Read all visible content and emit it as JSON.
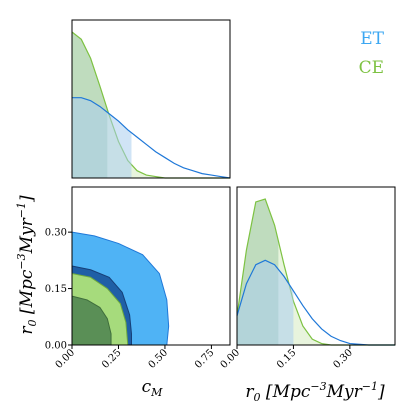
{
  "chart_data": {
    "type": "corner",
    "series": [
      {
        "name": "ET",
        "color": "#1f78d8",
        "fill": "#3ba7f2"
      },
      {
        "name": "CE",
        "color": "#7dc242",
        "fill": "#a6db7c"
      }
    ],
    "parameters": [
      {
        "key": "cM",
        "label": "c_M",
        "ticks": [
          "0.00",
          "0.25",
          "0.50",
          "0.75"
        ],
        "tick_values": [
          0,
          0.25,
          0.5,
          0.75
        ],
        "range": [
          0,
          0.85
        ]
      },
      {
        "key": "r0",
        "label": "r_0 [Mpc^-3 Myr^-1]",
        "ticks": [
          "0.00",
          "0.15",
          "0.30"
        ],
        "tick_values": [
          0,
          0.15,
          0.3
        ],
        "range": [
          0,
          0.42
        ]
      }
    ],
    "marginals": {
      "cM": {
        "x": [
          0,
          0.05,
          0.1,
          0.15,
          0.2,
          0.25,
          0.3,
          0.35,
          0.4,
          0.45,
          0.5,
          0.55,
          0.6,
          0.65,
          0.7,
          0.75,
          0.8,
          0.85
        ],
        "ET": [
          0.55,
          0.55,
          0.53,
          0.49,
          0.44,
          0.39,
          0.33,
          0.28,
          0.23,
          0.18,
          0.14,
          0.1,
          0.07,
          0.05,
          0.03,
          0.02,
          0.01,
          0.0
        ],
        "CE": [
          1.0,
          0.95,
          0.82,
          0.63,
          0.43,
          0.25,
          0.12,
          0.05,
          0.02,
          0.01,
          0.0,
          0.0,
          0.0,
          0.0,
          0.0,
          0.0,
          0.0,
          0.0
        ],
        "ET_interval": [
          0,
          0.32
        ],
        "CE_interval": [
          0,
          0.19
        ]
      },
      "r0": {
        "x": [
          0,
          0.025,
          0.05,
          0.075,
          0.1,
          0.125,
          0.15,
          0.175,
          0.2,
          0.225,
          0.25,
          0.275,
          0.3,
          0.35,
          0.42
        ],
        "ET": [
          0.2,
          0.42,
          0.55,
          0.58,
          0.55,
          0.47,
          0.37,
          0.27,
          0.18,
          0.11,
          0.06,
          0.03,
          0.01,
          0.0,
          0.0
        ],
        "CE": [
          0.2,
          0.65,
          0.98,
          1.0,
          0.82,
          0.55,
          0.3,
          0.13,
          0.04,
          0.01,
          0.0,
          0.0,
          0.0,
          0.0,
          0.0
        ],
        "ET_interval": [
          0,
          0.15
        ],
        "CE_interval": [
          0,
          0.11
        ]
      }
    },
    "joint": {
      "ET_outer": [
        [
          0,
          0.3
        ],
        [
          0.12,
          0.29
        ],
        [
          0.25,
          0.27
        ],
        [
          0.38,
          0.24
        ],
        [
          0.47,
          0.19
        ],
        [
          0.51,
          0.12
        ],
        [
          0.52,
          0.05
        ],
        [
          0.51,
          0.0
        ]
      ],
      "ET_inner": [
        [
          0,
          0.21
        ],
        [
          0.1,
          0.2
        ],
        [
          0.2,
          0.18
        ],
        [
          0.27,
          0.14
        ],
        [
          0.31,
          0.08
        ],
        [
          0.32,
          0.03
        ],
        [
          0.32,
          0.0
        ]
      ],
      "CE_outer": [
        [
          0,
          0.19
        ],
        [
          0.1,
          0.18
        ],
        [
          0.19,
          0.15
        ],
        [
          0.26,
          0.11
        ],
        [
          0.29,
          0.06
        ],
        [
          0.3,
          0.0
        ]
      ],
      "CE_inner": [
        [
          0,
          0.13
        ],
        [
          0.08,
          0.12
        ],
        [
          0.15,
          0.1
        ],
        [
          0.19,
          0.07
        ],
        [
          0.21,
          0.03
        ],
        [
          0.21,
          0.0
        ]
      ]
    },
    "legend": {
      "placement": "top-right",
      "entries": [
        "ET",
        "CE"
      ]
    },
    "xlabel": "c_M",
    "ylabel": "r_0 [Mpc^-3 Myr^-1]",
    "x2label": "r_0 [Mpc^-3 Myr^-1]"
  }
}
